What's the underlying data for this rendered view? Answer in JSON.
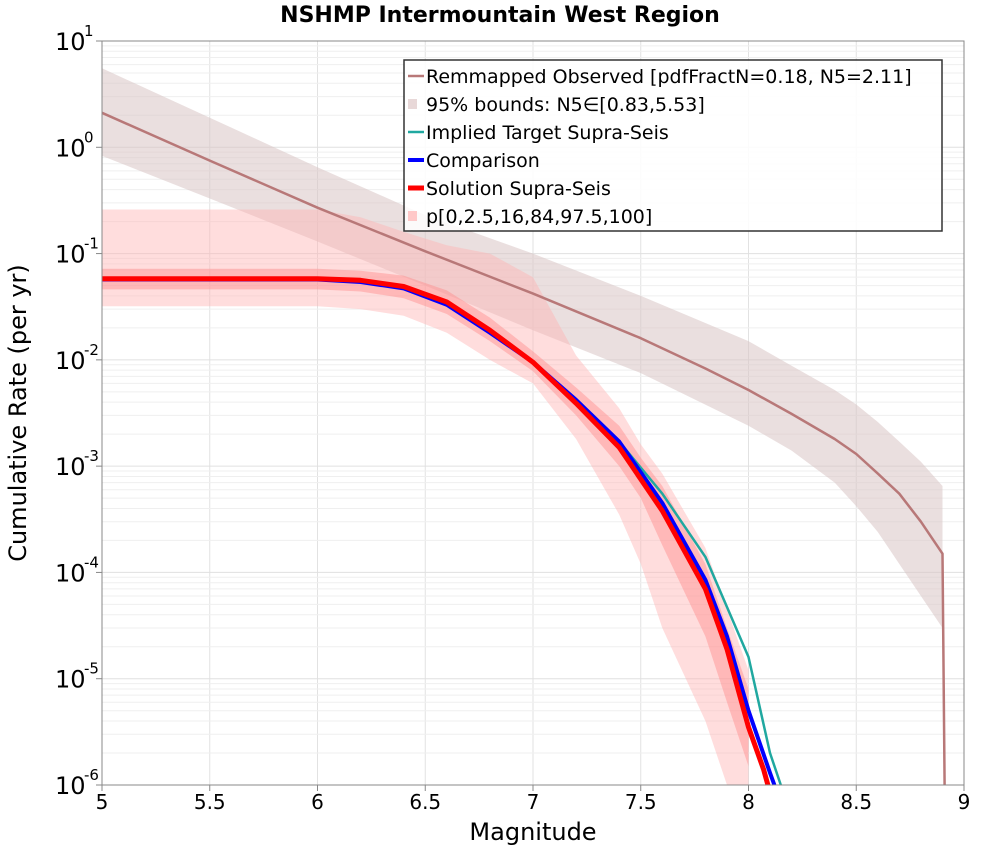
{
  "chart_data": {
    "type": "line",
    "title": "NSHMP Intermountain West Region",
    "xlabel": "Magnitude",
    "ylabel": "Cumulative Rate (per yr)",
    "xlim": [
      5,
      9
    ],
    "ylim": [
      1e-06,
      10
    ],
    "yscale": "log",
    "grid": true,
    "legend_position": "top-right",
    "x_ticks": [
      "5",
      "5.5",
      "6",
      "6.5",
      "7",
      "7.5",
      "8",
      "8.5",
      "9"
    ],
    "y_ticks": [
      {
        "base": "10",
        "exp": "-6"
      },
      {
        "base": "10",
        "exp": "-5"
      },
      {
        "base": "10",
        "exp": "-4"
      },
      {
        "base": "10",
        "exp": "-3"
      },
      {
        "base": "10",
        "exp": "-2"
      },
      {
        "base": "10",
        "exp": "-1"
      },
      {
        "base": "10",
        "exp": "0"
      },
      {
        "base": "10",
        "exp": "1"
      }
    ],
    "series": [
      {
        "name": "Remmapped Observed [pdfFractN=0.18, N5=2.11]",
        "color": "#b87878",
        "x": [
          5.0,
          5.5,
          6.0,
          6.5,
          7.0,
          7.5,
          7.8,
          8.0,
          8.2,
          8.4,
          8.5,
          8.6,
          8.7,
          8.8,
          8.9,
          8.91
        ],
        "y": [
          2.11,
          0.75,
          0.27,
          0.105,
          0.042,
          0.016,
          0.0083,
          0.0052,
          0.0031,
          0.0018,
          0.0013,
          0.00085,
          0.00055,
          0.0003,
          0.00015,
          1e-06
        ]
      },
      {
        "name": "95% bounds: N5∈[0.83,5.53]",
        "color": "#e8d8d8",
        "x": [
          5.0,
          5.5,
          6.0,
          6.5,
          7.0,
          7.5,
          8.0,
          8.2,
          8.4,
          8.5,
          8.6,
          8.7,
          8.8,
          8.9
        ],
        "lower": [
          0.83,
          0.33,
          0.13,
          0.05,
          0.019,
          0.0075,
          0.0024,
          0.0014,
          0.0007,
          0.00042,
          0.00024,
          0.00012,
          6e-05,
          3e-05
        ],
        "upper": [
          5.53,
          1.9,
          0.65,
          0.23,
          0.1,
          0.04,
          0.015,
          0.0088,
          0.0052,
          0.0038,
          0.0026,
          0.0017,
          0.0011,
          0.00065
        ]
      },
      {
        "name": "Implied Target Supra-Seis",
        "color": "#20a8a0",
        "x": [
          5.0,
          6.0,
          6.2,
          6.4,
          6.6,
          6.8,
          7.0,
          7.2,
          7.4,
          7.6,
          7.8,
          8.0,
          8.1,
          8.15
        ],
        "y": [
          0.058,
          0.058,
          0.055,
          0.048,
          0.034,
          0.019,
          0.0095,
          0.0041,
          0.0017,
          0.00055,
          0.00014,
          1.6e-05,
          2e-06,
          1e-06
        ]
      },
      {
        "name": "Comparison",
        "color": "#0000ff",
        "x": [
          5.0,
          6.0,
          6.2,
          6.4,
          6.6,
          6.8,
          7.0,
          7.2,
          7.4,
          7.6,
          7.8,
          7.9,
          8.0,
          8.1,
          8.12
        ],
        "y": [
          0.057,
          0.057,
          0.054,
          0.047,
          0.033,
          0.018,
          0.0095,
          0.0042,
          0.0017,
          0.00045,
          8.5e-05,
          2.5e-05,
          5e-06,
          1.3e-06,
          1e-06
        ]
      },
      {
        "name": "Solution Supra-Seis",
        "color": "#ff0000",
        "x": [
          5.0,
          6.0,
          6.2,
          6.4,
          6.6,
          6.8,
          7.0,
          7.2,
          7.4,
          7.6,
          7.8,
          7.9,
          8.0,
          8.07,
          8.09
        ],
        "y": [
          0.058,
          0.058,
          0.056,
          0.049,
          0.035,
          0.019,
          0.0095,
          0.0039,
          0.0015,
          0.00038,
          7e-05,
          1.9e-05,
          3.5e-06,
          1.4e-06,
          1e-06
        ]
      },
      {
        "name": "p[0,2.5,16,84,97.5,100]",
        "color": "#ffb3b3",
        "x": [
          5.0,
          6.0,
          6.2,
          6.4,
          6.6,
          6.8,
          7.0,
          7.2,
          7.4,
          7.5,
          7.6,
          7.8,
          7.9,
          8.0
        ],
        "outer_lower": [
          0.032,
          0.032,
          0.03,
          0.026,
          0.018,
          0.01,
          0.006,
          0.0018,
          0.00035,
          0.00012,
          3e-05,
          4e-06,
          1e-06,
          1e-06
        ],
        "outer_upper": [
          0.26,
          0.26,
          0.22,
          0.16,
          0.12,
          0.1,
          0.06,
          0.011,
          0.0035,
          0.0016,
          0.00085,
          0.00017,
          4.5e-05,
          1.2e-05
        ],
        "inner_lower": [
          0.046,
          0.046,
          0.044,
          0.038,
          0.027,
          0.015,
          0.0078,
          0.003,
          0.001,
          0.0005,
          0.00018,
          2.5e-05,
          6e-06,
          1.5e-06
        ],
        "inner_upper": [
          0.072,
          0.072,
          0.069,
          0.062,
          0.045,
          0.025,
          0.012,
          0.0055,
          0.0024,
          0.0012,
          0.00065,
          0.00012,
          3e-05,
          8e-06
        ]
      }
    ]
  }
}
